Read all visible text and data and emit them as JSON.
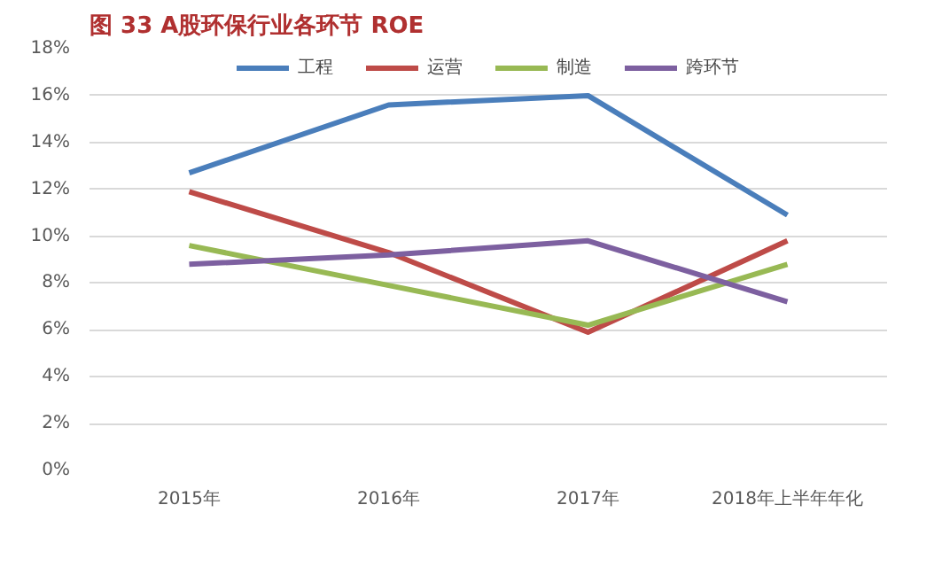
{
  "chart_data": {
    "type": "line",
    "title": "图 33 A股环保行业各环节 ROE",
    "categories": [
      "2015年",
      "2016年",
      "2017年",
      "2018年上半年年化"
    ],
    "series": [
      {
        "name": "工程",
        "color": "#4a7ebb",
        "values": [
          12.7,
          15.6,
          16.0,
          10.9
        ]
      },
      {
        "name": "运营",
        "color": "#be4b48",
        "values": [
          11.9,
          9.3,
          5.9,
          9.8
        ]
      },
      {
        "name": "制造",
        "color": "#98b954",
        "values": [
          9.6,
          7.9,
          6.2,
          8.8
        ]
      },
      {
        "name": "跨环节",
        "color": "#7d60a0",
        "values": [
          8.8,
          9.2,
          9.8,
          7.2
        ]
      }
    ],
    "ylim": [
      0,
      18
    ],
    "yticks": [
      {
        "value": 0,
        "label": "0%"
      },
      {
        "value": 2,
        "label": "2%"
      },
      {
        "value": 4,
        "label": "4%"
      },
      {
        "value": 6,
        "label": "6%"
      },
      {
        "value": 8,
        "label": "8%"
      },
      {
        "value": 10,
        "label": "10%"
      },
      {
        "value": 12,
        "label": "12%"
      },
      {
        "value": 14,
        "label": "14%"
      },
      {
        "value": 16,
        "label": "16%"
      },
      {
        "value": 18,
        "label": "18%"
      }
    ],
    "grid": "y",
    "legend": "top",
    "marker": "none",
    "line_style": "solid"
  }
}
